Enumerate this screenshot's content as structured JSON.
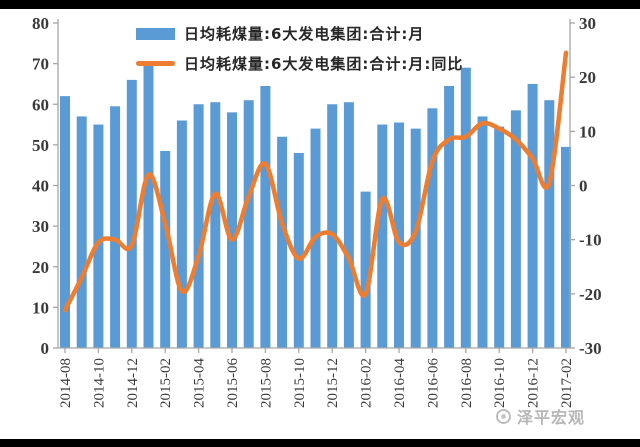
{
  "chart_data": {
    "type": "bar",
    "title": "",
    "categories": [
      "2014-08",
      "2014-09",
      "2014-10",
      "2014-11",
      "2014-12",
      "2015-01",
      "2015-02",
      "2015-03",
      "2015-04",
      "2015-05",
      "2015-06",
      "2015-07",
      "2015-08",
      "2015-09",
      "2015-10",
      "2015-11",
      "2015-12",
      "2016-01",
      "2016-02",
      "2016-03",
      "2016-04",
      "2016-05",
      "2016-06",
      "2016-07",
      "2016-08",
      "2016-09",
      "2016-10",
      "2016-11",
      "2016-12",
      "2017-01",
      "2017-02"
    ],
    "series": [
      {
        "name": "日均耗煤量:6大发电集团:合计:月",
        "type": "bar",
        "axis": "left",
        "color": "#5B9BD5",
        "values": [
          62,
          57,
          55,
          59.5,
          66,
          70,
          48.5,
          56,
          60,
          60.5,
          58,
          61,
          64.5,
          52,
          48,
          54,
          60,
          60.5,
          38.5,
          55,
          55.5,
          54,
          59,
          64.5,
          69,
          57,
          54.5,
          58.5,
          65,
          61,
          49.5
        ]
      },
      {
        "name": "日均耗煤量:6大发电集团:合计:月:同比",
        "type": "line",
        "axis": "right",
        "color": "#ED7D31",
        "values": [
          -23,
          -17,
          -10.5,
          -10,
          -11,
          2,
          -7,
          -19.5,
          -13,
          -1.5,
          -10,
          -2,
          4,
          -7,
          -13.5,
          -9.5,
          -9,
          -13.5,
          -20,
          -2.5,
          -10.5,
          -8.5,
          4.5,
          8.5,
          9,
          11.5,
          10.5,
          8.5,
          5,
          0.5,
          24.5
        ]
      }
    ],
    "y_axis_left": {
      "min": 0,
      "max": 80,
      "step": 10,
      "tick_labels": [
        "0",
        "10",
        "20",
        "30",
        "40",
        "50",
        "60",
        "70",
        "80"
      ]
    },
    "y_axis_right": {
      "min": -30,
      "max": 30,
      "step": 10,
      "tick_labels": [
        "-30",
        "-20",
        "-10",
        "0",
        "10",
        "20",
        "30"
      ]
    },
    "x_tick_every": 2,
    "legend_position": "top",
    "grid": false,
    "xlabel": "",
    "ylabel": ""
  },
  "watermark": {
    "text": "泽平宏观"
  },
  "colors": {
    "bar": "#5B9BD5",
    "line": "#ED7D31",
    "axis": "#a6a6a6",
    "tick_text": "#3a3a3a",
    "letterbox": "#000000",
    "watermark": "#b3b3b3"
  }
}
